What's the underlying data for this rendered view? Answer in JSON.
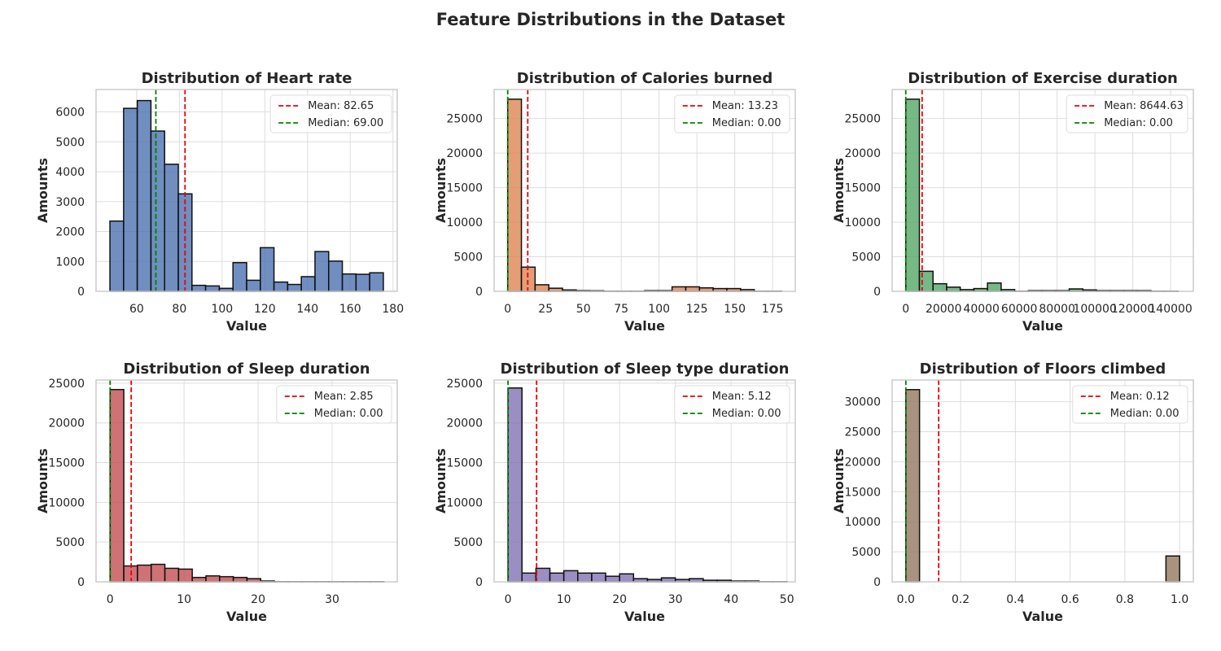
{
  "figure": {
    "title": "Feature Distributions in the Dataset"
  },
  "colors": {
    "mean_line": "#e8000b",
    "median_line": "#008000",
    "grid": "#dddddd",
    "frame": "#cccccc",
    "bar_edge": "#111111"
  },
  "chart_data": [
    {
      "type": "bar",
      "title": "Distribution of Heart rate",
      "xlabel": "Value",
      "ylabel": "Amounts",
      "color": "#4c72b0",
      "xlim": [
        41,
        182
      ],
      "ylim": [
        0,
        6750
      ],
      "xticks": [
        60,
        80,
        100,
        120,
        140,
        160,
        180
      ],
      "yticks": [
        0,
        1000,
        2000,
        3000,
        4000,
        5000,
        6000
      ],
      "bins": {
        "start": 47.5,
        "width": 6.4,
        "counts": [
          2350,
          6120,
          6380,
          5360,
          4250,
          3260,
          200,
          180,
          100,
          960,
          370,
          1460,
          310,
          230,
          490,
          1330,
          1010,
          580,
          570,
          620
        ]
      },
      "mean": 82.65,
      "median": 69.0,
      "legend": {
        "mean_label": "Mean: 82.65",
        "median_label": "Median: 69.00",
        "position": "top-right"
      },
      "grid": true
    },
    {
      "type": "bar",
      "title": "Distribution of Calories burned",
      "xlabel": "Value",
      "ylabel": "Amounts",
      "color": "#dd8452",
      "xlim": [
        -9,
        190
      ],
      "ylim": [
        0,
        29200
      ],
      "xticks": [
        0,
        25,
        50,
        75,
        100,
        125,
        150,
        175
      ],
      "yticks": [
        0,
        5000,
        10000,
        15000,
        20000,
        25000
      ],
      "bins": {
        "start": 0,
        "width": 9.05,
        "counts": [
          27800,
          3500,
          950,
          450,
          200,
          100,
          80,
          20,
          20,
          20,
          100,
          100,
          650,
          650,
          500,
          400,
          400,
          250,
          20,
          20
        ]
      },
      "mean": 13.23,
      "median": 0.0,
      "legend": {
        "mean_label": "Mean: 13.23",
        "median_label": "Median: 0.00",
        "position": "top-right"
      },
      "grid": true
    },
    {
      "type": "bar",
      "title": "Distribution of Exercise duration",
      "xlabel": "Value",
      "ylabel": "Amounts",
      "color": "#55a868",
      "xlim": [
        -7200,
        152000
      ],
      "ylim": [
        0,
        29200
      ],
      "xticks": [
        0,
        20000,
        40000,
        60000,
        80000,
        100000,
        120000,
        140000
      ],
      "yticks": [
        0,
        5000,
        10000,
        15000,
        20000,
        25000
      ],
      "bins": {
        "start": 0,
        "width": 7200,
        "counts": [
          27800,
          2900,
          1100,
          600,
          250,
          400,
          1200,
          250,
          20,
          100,
          100,
          100,
          350,
          200,
          100,
          100,
          100,
          100,
          20,
          20
        ]
      },
      "mean": 8644.63,
      "median": 0.0,
      "legend": {
        "mean_label": "Mean: 8644.63",
        "median_label": "Median: 0.00",
        "position": "top-right"
      },
      "grid": true
    },
    {
      "type": "bar",
      "title": "Distribution of Sleep duration",
      "xlabel": "Value",
      "ylabel": "Amounts",
      "color": "#c44e52",
      "xlim": [
        -1.9,
        38.8
      ],
      "ylim": [
        0,
        25400
      ],
      "xticks": [
        0,
        10,
        20,
        30
      ],
      "yticks": [
        0,
        5000,
        10000,
        15000,
        20000,
        25000
      ],
      "bins": {
        "start": 0,
        "width": 1.85,
        "counts": [
          24200,
          2000,
          2100,
          2200,
          1700,
          1600,
          550,
          750,
          650,
          550,
          400,
          100,
          20,
          20,
          20,
          20,
          20,
          20,
          20,
          20
        ]
      },
      "mean": 2.85,
      "median": 0.0,
      "legend": {
        "mean_label": "Mean: 2.85",
        "median_label": "Median: 0.00",
        "position": "top-right"
      },
      "grid": true
    },
    {
      "type": "bar",
      "title": "Distribution of Sleep type duration",
      "xlabel": "Value",
      "ylabel": "Amounts",
      "color": "#8172b3",
      "xlim": [
        -2.5,
        51.5
      ],
      "ylim": [
        0,
        25400
      ],
      "xticks": [
        0,
        10,
        20,
        30,
        40,
        50
      ],
      "yticks": [
        0,
        5000,
        10000,
        15000,
        20000,
        25000
      ],
      "bins": {
        "start": 0,
        "width": 2.5,
        "counts": [
          24400,
          1100,
          1700,
          1100,
          1400,
          1100,
          1100,
          700,
          1000,
          400,
          300,
          500,
          300,
          400,
          200,
          200,
          100,
          100,
          20,
          20
        ]
      },
      "mean": 5.12,
      "median": 0.0,
      "legend": {
        "mean_label": "Mean: 5.12",
        "median_label": "Median: 0.00",
        "position": "top-right"
      },
      "grid": true
    },
    {
      "type": "bar",
      "title": "Distribution of Floors climbed",
      "xlabel": "Value",
      "ylabel": "Amounts",
      "color": "#937860",
      "xlim": [
        -0.05,
        1.05
      ],
      "ylim": [
        0,
        33600
      ],
      "xticks": [
        "0.0",
        "0.2",
        "0.4",
        "0.6",
        "0.8",
        "1.0"
      ],
      "yticks": [
        0,
        5000,
        10000,
        15000,
        20000,
        25000,
        30000
      ],
      "bins": {
        "start": 0,
        "width": 0.05,
        "counts": [
          32000,
          0,
          0,
          0,
          0,
          0,
          0,
          0,
          0,
          0,
          0,
          0,
          0,
          0,
          0,
          0,
          0,
          0,
          0,
          4300
        ]
      },
      "mean": 0.12,
      "median": 0.0,
      "legend": {
        "mean_label": "Mean: 0.12",
        "median_label": "Median: 0.00",
        "position": "top-right"
      },
      "grid": true
    }
  ]
}
